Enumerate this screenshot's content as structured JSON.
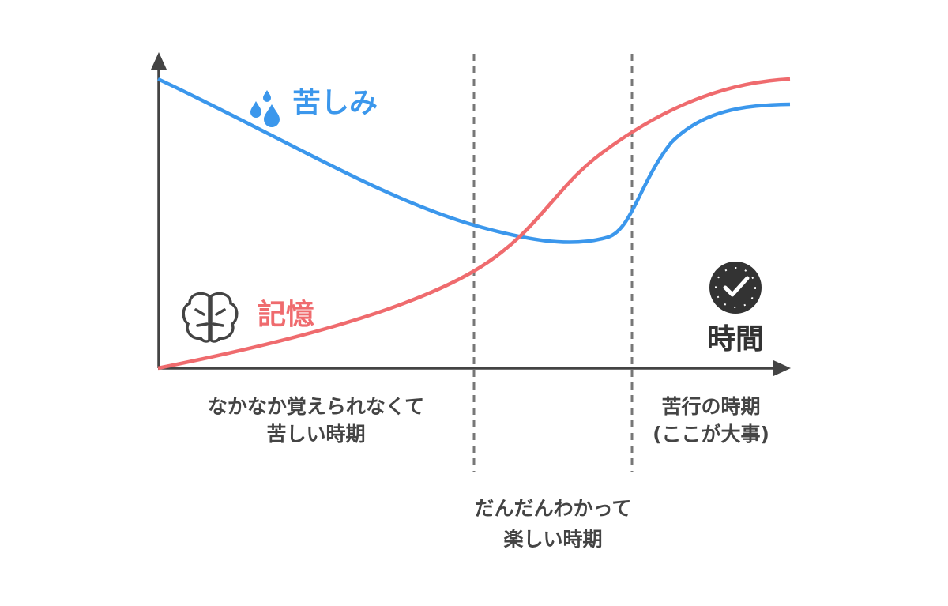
{
  "labels": {
    "pain": "苦しみ",
    "memory": "記憶",
    "time": "時間"
  },
  "phases": [
    {
      "lines": [
        "なかなか覚えられなくて",
        "苦しい時期"
      ]
    },
    {
      "lines": [
        "だんだんわかって",
        "楽しい時期"
      ]
    },
    {
      "lines": [
        "苦行の時期",
        "(ここが大事)"
      ]
    }
  ]
}
